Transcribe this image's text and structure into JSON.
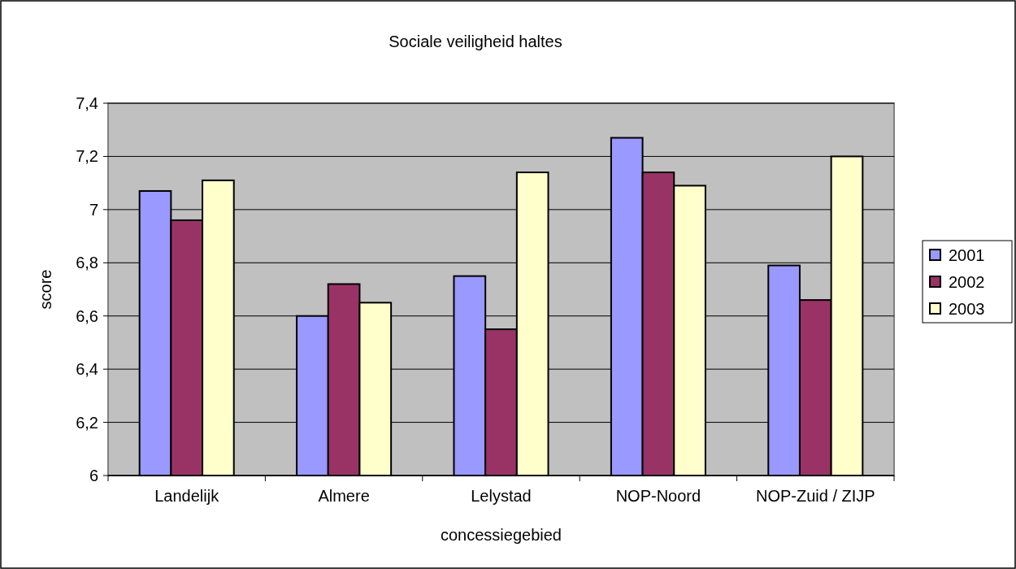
{
  "chart_data": {
    "type": "bar",
    "title": "Sociale veiligheid haltes",
    "xlabel": "concessiegebied",
    "ylabel": "score",
    "categories": [
      "Landelijk",
      "Almere",
      "Lelystad",
      "NOP-Noord",
      "NOP-Zuid / ZIJP"
    ],
    "series": [
      {
        "name": "2001",
        "color": "#9999ff",
        "values": [
          7.07,
          6.6,
          6.75,
          7.27,
          6.79
        ]
      },
      {
        "name": "2002",
        "color": "#993366",
        "values": [
          6.96,
          6.72,
          6.55,
          7.14,
          6.66
        ]
      },
      {
        "name": "2003",
        "color": "#ffffcc",
        "values": [
          7.11,
          6.65,
          7.14,
          7.09,
          7.2
        ]
      }
    ],
    "ylim": [
      6,
      7.4
    ],
    "yticks": [
      {
        "value": 6,
        "label": "6"
      },
      {
        "value": 6.2,
        "label": "6,2"
      },
      {
        "value": 6.4,
        "label": "6,4"
      },
      {
        "value": 6.6,
        "label": "6,6"
      },
      {
        "value": 6.8,
        "label": "6,8"
      },
      {
        "value": 7,
        "label": "7"
      },
      {
        "value": 7.2,
        "label": "7,2"
      },
      {
        "value": 7.4,
        "label": "7,4"
      }
    ],
    "grid": "y",
    "legend": "right"
  }
}
